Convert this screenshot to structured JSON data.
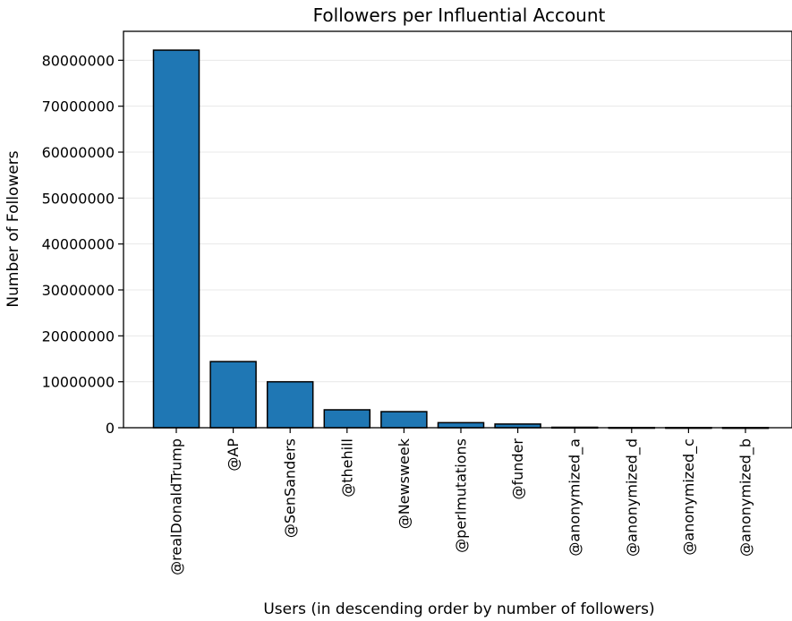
{
  "chart_data": {
    "type": "bar",
    "title": "Followers per Influential Account",
    "xlabel": "Users (in descending order by number of followers)",
    "ylabel": "Number of Followers",
    "categories": [
      "@realDonaldTrump",
      "@AP",
      "@SenSanders",
      "@thehill",
      "@Newsweek",
      "@perlmutations",
      "@funder",
      "@anonymized_a",
      "@anonymized_d",
      "@anonymized_c",
      "@anonymized_b"
    ],
    "values": [
      82200000,
      14400000,
      10000000,
      3900000,
      3500000,
      1100000,
      800000,
      100000,
      50000,
      40000,
      30000
    ],
    "ylim": [
      0,
      86300000
    ],
    "yticks": [
      0,
      10000000,
      20000000,
      30000000,
      40000000,
      50000000,
      60000000,
      70000000,
      80000000
    ],
    "grid": true,
    "bar_color": "#1f77b4"
  }
}
